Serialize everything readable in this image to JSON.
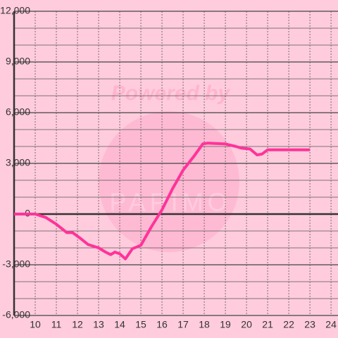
{
  "chart_data": {
    "type": "line",
    "watermark": {
      "title": "Powered by",
      "brand": "PAPIMO"
    },
    "x": [
      9,
      10,
      10.5,
      11,
      11.5,
      11.77,
      12.1,
      12.5,
      13,
      13.33,
      13.57,
      13.77,
      14,
      14.27,
      14.6,
      15,
      15.5,
      16,
      16.5,
      17,
      17.5,
      17.93,
      18.17,
      19,
      19.5,
      19.77,
      20.17,
      20.5,
      20.73,
      21,
      23
    ],
    "series": [
      {
        "color": "#ff3399",
        "values": [
          0,
          0,
          -200,
          -600,
          -1100,
          -1100,
          -1400,
          -1800,
          -2000,
          -2250,
          -2400,
          -2250,
          -2350,
          -2650,
          -2050,
          -1850,
          -750,
          250,
          1500,
          2600,
          3400,
          4150,
          4200,
          4150,
          4000,
          3900,
          3850,
          3500,
          3550,
          3800,
          3800
        ]
      }
    ],
    "xlim": [
      9,
      24.33
    ],
    "xticks": [
      10,
      11,
      12,
      13,
      14,
      15,
      16,
      17,
      18,
      19,
      20,
      21,
      22,
      23,
      24
    ],
    "ylim": [
      -6000,
      12000
    ],
    "yticks": [
      {
        "value": -6000,
        "label": "-6,000"
      },
      {
        "value": -3000,
        "label": "-3,000"
      },
      0,
      {
        "value": 3000,
        "label": "3,000"
      },
      {
        "value": 6000,
        "label": "6,000"
      },
      {
        "value": 9000,
        "label": "9,000"
      },
      {
        "value": 12000,
        "label": "12,000"
      }
    ],
    "yminorticks": [
      -5000,
      -4000,
      -2000,
      -1000,
      1000,
      2000,
      4000,
      5000,
      7000,
      8000,
      10000,
      11000
    ],
    "grid": true
  }
}
